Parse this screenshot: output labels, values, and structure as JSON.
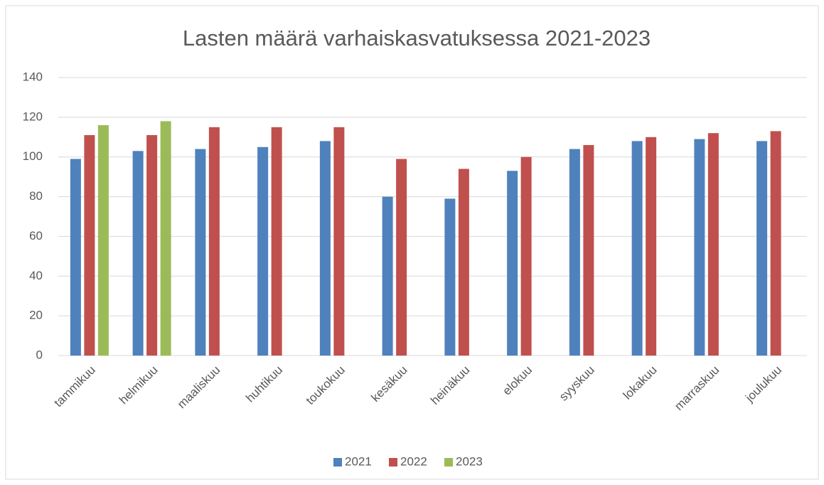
{
  "chart_data": {
    "type": "bar",
    "title": "Lasten määrä varhaiskasvatuksessa 2021-2023",
    "categories": [
      "tammikuu",
      "helmikuu",
      "maaliskuu",
      "huhtikuu",
      "toukokuu",
      "kesäkuu",
      "heinäkuu",
      "elokuu",
      "syyskuu",
      "lokakuu",
      "marraskuu",
      "joulukuu"
    ],
    "series": [
      {
        "name": "2021",
        "color": "#4f81bd",
        "values": [
          99,
          103,
          104,
          105,
          108,
          80,
          79,
          93,
          104,
          108,
          109,
          108
        ]
      },
      {
        "name": "2022",
        "color": "#c0504d",
        "values": [
          111,
          111,
          115,
          115,
          115,
          99,
          94,
          100,
          106,
          110,
          112,
          113
        ]
      },
      {
        "name": "2023",
        "color": "#9bbb59",
        "values": [
          116,
          118,
          null,
          null,
          null,
          null,
          null,
          null,
          null,
          null,
          null,
          null
        ]
      }
    ],
    "ylim": [
      0,
      140
    ],
    "yticks": [
      0,
      20,
      40,
      60,
      80,
      100,
      120,
      140
    ],
    "grid": true,
    "legend": "bottom"
  }
}
